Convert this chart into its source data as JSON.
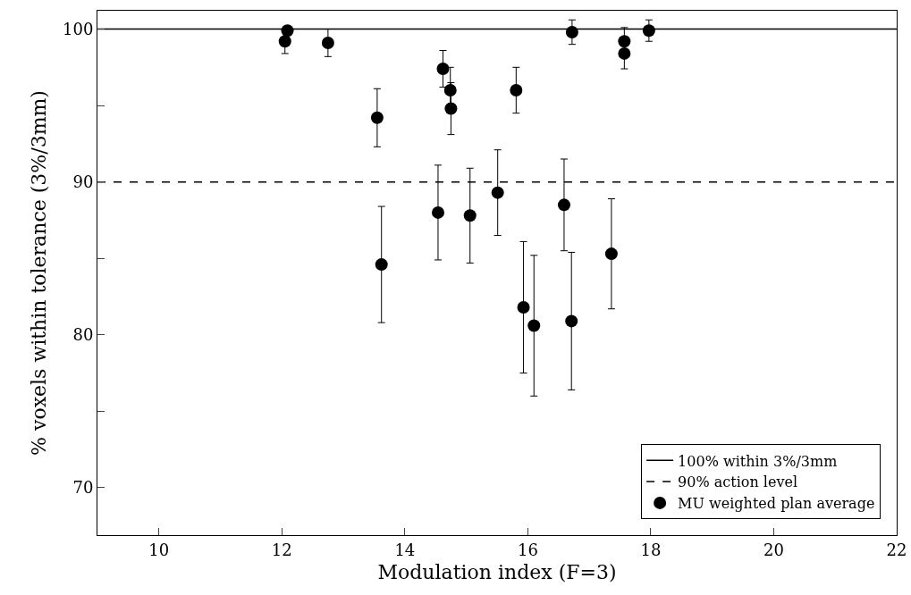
{
  "chart_data": {
    "type": "scatter",
    "xlabel": "Modulation index (F=3)",
    "ylabel": "% voxels within tolerance (3%/3mm)",
    "xlim": [
      9,
      22
    ],
    "xticks": [
      10,
      12,
      14,
      16,
      18,
      20,
      22
    ],
    "ylim": [
      66.9,
      101.2
    ],
    "yticks": [
      70,
      {
        "value": 75,
        "label": null
      },
      80,
      {
        "value": 85,
        "label": null
      },
      90,
      {
        "value": 95,
        "label": null
      },
      100
    ],
    "grid": false,
    "legend": "bottom right",
    "marker": "circle",
    "ref_lines": [
      {
        "axis": "y",
        "value": 100,
        "label": "100% within 3%/3mm",
        "color": "#000000",
        "line_style": "solid"
      },
      {
        "axis": "y",
        "value": 90,
        "label": "90% action level",
        "color": "#000000",
        "line_style": "dashed"
      }
    ],
    "series": [
      {
        "name": "MU weighted plan average",
        "color": "#000000",
        "x": [
          12.05,
          12.09,
          12.75,
          13.55,
          13.62,
          14.62,
          14.74,
          14.75,
          15.81,
          14.54,
          15.06,
          15.51,
          16.59,
          17.36,
          15.93,
          16.1,
          16.71,
          16.72,
          17.57,
          17.57,
          17.97
        ],
        "values": [
          99.2,
          99.9,
          99.1,
          94.2,
          84.6,
          97.4,
          96.0,
          94.8,
          96.0,
          88.0,
          87.8,
          89.3,
          88.5,
          85.3,
          81.8,
          80.6,
          80.9,
          99.8,
          99.2,
          98.4,
          99.9
        ],
        "errors": [
          0.8,
          null,
          0.9,
          1.9,
          3.8,
          1.2,
          1.5,
          1.7,
          1.5,
          3.1,
          3.1,
          2.8,
          3.0,
          3.6,
          4.3,
          4.6,
          4.5,
          0.8,
          0.9,
          1.0,
          0.7
        ]
      }
    ]
  }
}
